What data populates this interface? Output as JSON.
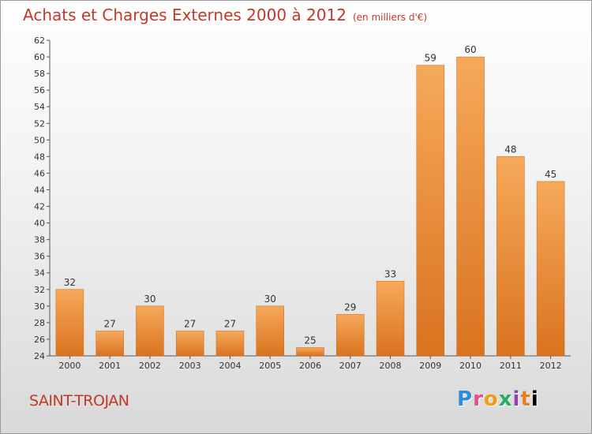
{
  "header": {
    "title": "Achats et Charges Externes 2000 à 2012",
    "unit": "(en milliers d'€)"
  },
  "footer": {
    "commune": "SAINT-TROJAN",
    "brand_letters": [
      "P",
      "r",
      "o",
      "x",
      "i",
      "t",
      "i"
    ]
  },
  "colors": {
    "bar_top": "#f6a95a",
    "bar_bottom": "#d9731f",
    "title": "#c0392b"
  },
  "chart_data": {
    "type": "bar",
    "title": "Achats et Charges Externes 2000 à 2012",
    "categories": [
      "2000",
      "2001",
      "2002",
      "2003",
      "2004",
      "2005",
      "2006",
      "2007",
      "2008",
      "2009",
      "2010",
      "2011",
      "2012"
    ],
    "values": [
      32,
      27,
      30,
      27,
      27,
      30,
      25,
      29,
      33,
      59,
      60,
      48,
      45
    ],
    "ylim": [
      24,
      62
    ],
    "ytick_step": 2,
    "xlabel": "",
    "ylabel": "",
    "grid": false
  }
}
